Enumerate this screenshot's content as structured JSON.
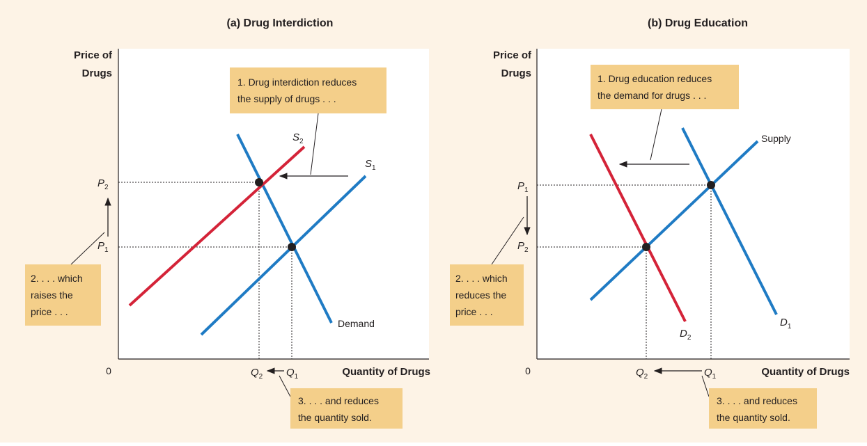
{
  "colors": {
    "background": "#fdf3e6",
    "plot": "#ffffff",
    "callout": "#f4cf8a",
    "blue": "#1f7bc4",
    "red": "#d42338",
    "ink": "#231f20"
  },
  "panel_a": {
    "title": "(a) Drug Interdiction",
    "y_axis_label_1": "Price of",
    "y_axis_label_2": "Drugs",
    "x_axis_label": "Quantity of Drugs",
    "origin": "0",
    "p_high": {
      "letter": "P",
      "sub": "2"
    },
    "p_low": {
      "letter": "P",
      "sub": "1"
    },
    "q_low": {
      "letter": "Q",
      "sub": "2"
    },
    "q_high": {
      "letter": "Q",
      "sub": "1"
    },
    "curve_s2": {
      "letter": "S",
      "sub": "2"
    },
    "curve_s1": {
      "letter": "S",
      "sub": "1"
    },
    "curve_demand": "Demand",
    "callout_1": [
      "1. Drug interdiction reduces",
      "the supply of drugs . . ."
    ],
    "callout_2": [
      "2. . . . which",
      "raises the",
      "price . . ."
    ],
    "callout_3": [
      "3. . . . and reduces",
      "the quantity sold."
    ]
  },
  "panel_b": {
    "title": "(b) Drug Education",
    "y_axis_label_1": "Price of",
    "y_axis_label_2": "Drugs",
    "x_axis_label": "Quantity of Drugs",
    "origin": "0",
    "p_high": {
      "letter": "P",
      "sub": "1"
    },
    "p_low": {
      "letter": "P",
      "sub": "2"
    },
    "q_low": {
      "letter": "Q",
      "sub": "2"
    },
    "q_high": {
      "letter": "Q",
      "sub": "1"
    },
    "curve_supply": "Supply",
    "curve_d1": {
      "letter": "D",
      "sub": "1"
    },
    "curve_d2": {
      "letter": "D",
      "sub": "2"
    },
    "callout_1": [
      "1. Drug education reduces",
      "the demand for drugs . . ."
    ],
    "callout_2": [
      "2. . . . which",
      "reduces the",
      "price . . ."
    ],
    "callout_3": [
      "3. . . . and reduces",
      "the quantity sold."
    ]
  }
}
